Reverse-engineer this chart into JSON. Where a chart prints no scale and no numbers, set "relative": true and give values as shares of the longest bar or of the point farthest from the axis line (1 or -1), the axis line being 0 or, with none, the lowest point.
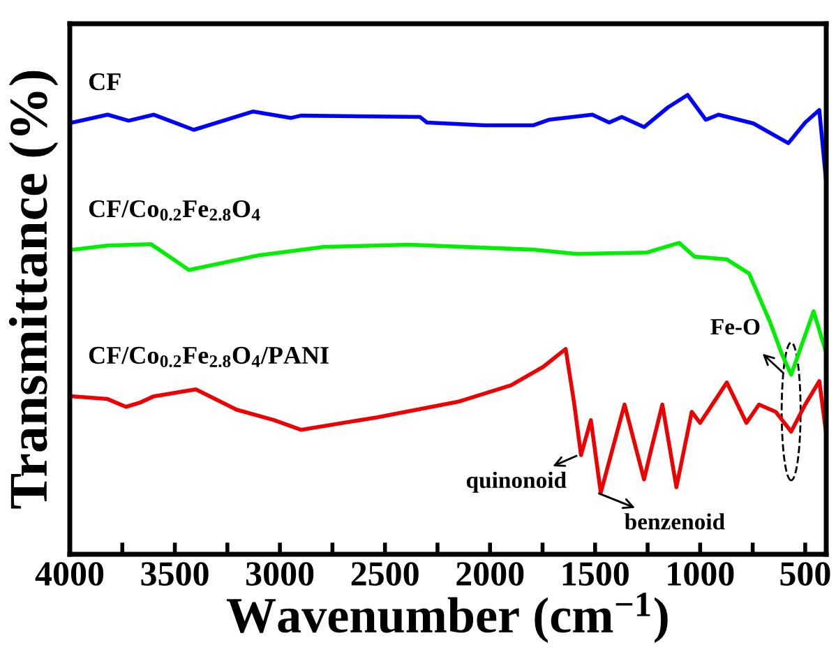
{
  "chart_data": {
    "type": "line",
    "relative": true,
    "xlabel": "Wavenumber (cm$^{−1}$)",
    "ylabel": "Transmittance (%)",
    "xlim": [
      4000,
      400
    ],
    "xticks": [
      4000,
      {
        "value": 3750,
        "label": null
      },
      3500,
      {
        "value": 3250,
        "label": null
      },
      3000,
      {
        "value": 2750,
        "label": null
      },
      2500,
      {
        "value": 2250,
        "label": null
      },
      2000,
      {
        "value": 1750,
        "label": null
      },
      1500,
      {
        "value": 1250,
        "label": null
      },
      1000,
      {
        "value": 750,
        "label": null
      },
      500
    ],
    "tick_labels": "x",
    "grid": false,
    "legend": false,
    "marker": "none",
    "line_style": "solid",
    "series": [
      {
        "name": "CF",
        "color": "#0000ff",
        "x": [
          3987,
          3820,
          3720,
          3600,
          3410,
          3127,
          2947,
          2900,
          2333,
          2300,
          2027,
          1793,
          1720,
          1513,
          1433,
          1373,
          1267,
          1153,
          1060,
          973,
          913,
          747,
          580,
          500,
          433,
          400
        ],
        "values": [
          0.94,
          0.957,
          0.944,
          0.957,
          0.924,
          0.964,
          0.95,
          0.955,
          0.952,
          0.94,
          0.934,
          0.934,
          0.946,
          0.957,
          0.94,
          0.952,
          0.93,
          0.973,
          1.0,
          0.946,
          0.957,
          0.938,
          0.895,
          0.94,
          0.967,
          0.809
        ]
      },
      {
        "name": "CF/Co$_{0.2}$Fe$_{2.8}$O$_{4}$",
        "color": "#00ee00",
        "x": [
          3987,
          3820,
          3613,
          3433,
          3100,
          2793,
          2387,
          1787,
          1587,
          1253,
          1100,
          1027,
          873,
          767,
          667,
          613,
          567,
          460,
          400
        ],
        "values": [
          0.663,
          0.672,
          0.675,
          0.619,
          0.651,
          0.669,
          0.674,
          0.663,
          0.654,
          0.657,
          0.678,
          0.648,
          0.642,
          0.611,
          0.505,
          0.438,
          0.391,
          0.529,
          0.438
        ]
      },
      {
        "name": "CF/Co$_{0.2}$Fe$_{2.8}$O$_{4}$/PANI",
        "color": "#ee0000",
        "x": [
          3987,
          3820,
          3733,
          3667,
          3600,
          3400,
          3207,
          3027,
          2900,
          2540,
          2153,
          1900,
          1747,
          1640,
          1600,
          1567,
          1520,
          1473,
          1360,
          1267,
          1233,
          1180,
          1113,
          1040,
          1000,
          873,
          780,
          720,
          640,
          567,
          500,
          433,
          400
        ],
        "values": [
          0.344,
          0.338,
          0.321,
          0.33,
          0.344,
          0.359,
          0.315,
          0.292,
          0.271,
          0.298,
          0.332,
          0.368,
          0.408,
          0.447,
          0.33,
          0.216,
          0.292,
          0.134,
          0.326,
          0.163,
          0.228,
          0.326,
          0.146,
          0.31,
          0.286,
          0.374,
          0.286,
          0.326,
          0.31,
          0.267,
          0.326,
          0.377,
          0.261
        ]
      }
    ],
    "annotations": [
      {
        "text": "quinonoid",
        "x": 1580,
        "y": 0.216
      },
      {
        "text": "benzenoid",
        "x": 1490,
        "y": 0.134
      },
      "Fe-O"
    ]
  }
}
